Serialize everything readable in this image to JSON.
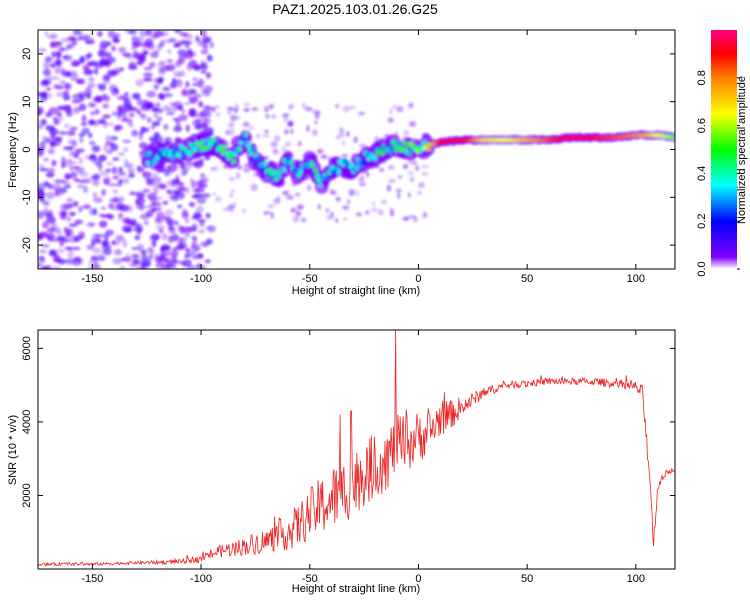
{
  "figure": {
    "title": "PAZ1.2025.103.01.26.G25"
  },
  "chart_data": [
    {
      "type": "heatmap",
      "xlabel": "Height of straight line (km)",
      "ylabel": "Frequency (Hz)",
      "xlim": [
        -175,
        118
      ],
      "ylim": [
        -25,
        25
      ],
      "xticks": [
        -150,
        -100,
        -50,
        0,
        50,
        100
      ],
      "yticks": [
        -20,
        -10,
        0,
        10,
        20
      ],
      "colorbar": {
        "label": "Normalized spectral amplitude",
        "range": [
          0,
          1
        ],
        "ticks": [
          0.0,
          0.2,
          0.4,
          0.6,
          0.8
        ],
        "colormap": [
          "#ffffff",
          "#8000ff",
          "#0000ff",
          "#00ffff",
          "#00ff00",
          "#ffff00",
          "#ff8000",
          "#ff0000",
          "#ff0080"
        ]
      },
      "ridge": {
        "x": [
          -125,
          -115,
          -105,
          -100,
          -95,
          -90,
          -85,
          -80,
          -75,
          -70,
          -65,
          -60,
          -55,
          -50,
          -45,
          -40,
          -35,
          -30,
          -25,
          -20,
          -15,
          -10,
          -5,
          0,
          5,
          10,
          20,
          30,
          40,
          50,
          60,
          70,
          80,
          90,
          100,
          105,
          110,
          118
        ],
        "y": [
          -2,
          -1,
          0,
          1,
          1.5,
          0,
          -2,
          3,
          -2,
          -4,
          -6,
          -2,
          -5,
          -3,
          -7,
          -5,
          -3,
          -4,
          -2,
          -1,
          0,
          1,
          0,
          0.5,
          1,
          1.5,
          2,
          2,
          2,
          2,
          2,
          2.5,
          2.5,
          2.5,
          3,
          3,
          3,
          2.5
        ],
        "amplitude": [
          0.35,
          0.4,
          0.45,
          0.5,
          0.45,
          0.5,
          0.45,
          0.4,
          0.4,
          0.4,
          0.4,
          0.4,
          0.4,
          0.45,
          0.4,
          0.4,
          0.4,
          0.4,
          0.4,
          0.45,
          0.5,
          0.55,
          0.6,
          0.65,
          0.7,
          0.9,
          0.95,
          0.7,
          0.65,
          0.75,
          0.85,
          0.95,
          0.9,
          0.85,
          0.8,
          0.75,
          0.65,
          0.55
        ]
      }
    },
    {
      "type": "line",
      "xlabel": "Height of straight line (km)",
      "ylabel": "SNR (10 * v/v)",
      "xlim": [
        -175,
        118
      ],
      "ylim": [
        0,
        6500
      ],
      "xticks": [
        -150,
        -100,
        -50,
        0,
        50,
        100
      ],
      "yticks": [
        2000,
        4000,
        6000
      ],
      "color": "#ee2222",
      "series": [
        {
          "x": [
            -175,
            -160,
            -150,
            -140,
            -130,
            -120,
            -110,
            -100,
            -95,
            -90,
            -85,
            -80,
            -75,
            -70,
            -65,
            -60,
            -55,
            -50,
            -45,
            -40,
            -35,
            -30,
            -25,
            -20,
            -15,
            -10,
            -5,
            0,
            5,
            10,
            15,
            20,
            25,
            30,
            40,
            50,
            60,
            70,
            80,
            90,
            100,
            103,
            105,
            107,
            108,
            110,
            112,
            115,
            118
          ],
          "y": [
            120,
            140,
            130,
            150,
            170,
            180,
            200,
            280,
            420,
            500,
            560,
            620,
            700,
            750,
            900,
            1000,
            1200,
            1500,
            1700,
            1900,
            2100,
            2300,
            2600,
            2800,
            3000,
            3300,
            3400,
            3600,
            3700,
            4100,
            4200,
            4400,
            4600,
            4800,
            5000,
            5050,
            5100,
            5100,
            5100,
            5050,
            4950,
            4800,
            3500,
            2100,
            600,
            2200,
            2500,
            2650,
            2700
          ],
          "noise": [
            40,
            40,
            40,
            40,
            40,
            50,
            60,
            100,
            150,
            180,
            220,
            250,
            300,
            350,
            400,
            500,
            600,
            700,
            800,
            900,
            900,
            900,
            900,
            900,
            900,
            900,
            800,
            700,
            600,
            500,
            400,
            300,
            200,
            150,
            100,
            100,
            100,
            100,
            100,
            120,
            150,
            200,
            300,
            300,
            200,
            150,
            100,
            80,
            60
          ],
          "spikes": [
            {
              "x": -10.5,
              "y": 6500
            },
            {
              "x": -36,
              "y": 4200
            },
            {
              "x": -31,
              "y": 4300
            }
          ]
        }
      ]
    }
  ]
}
